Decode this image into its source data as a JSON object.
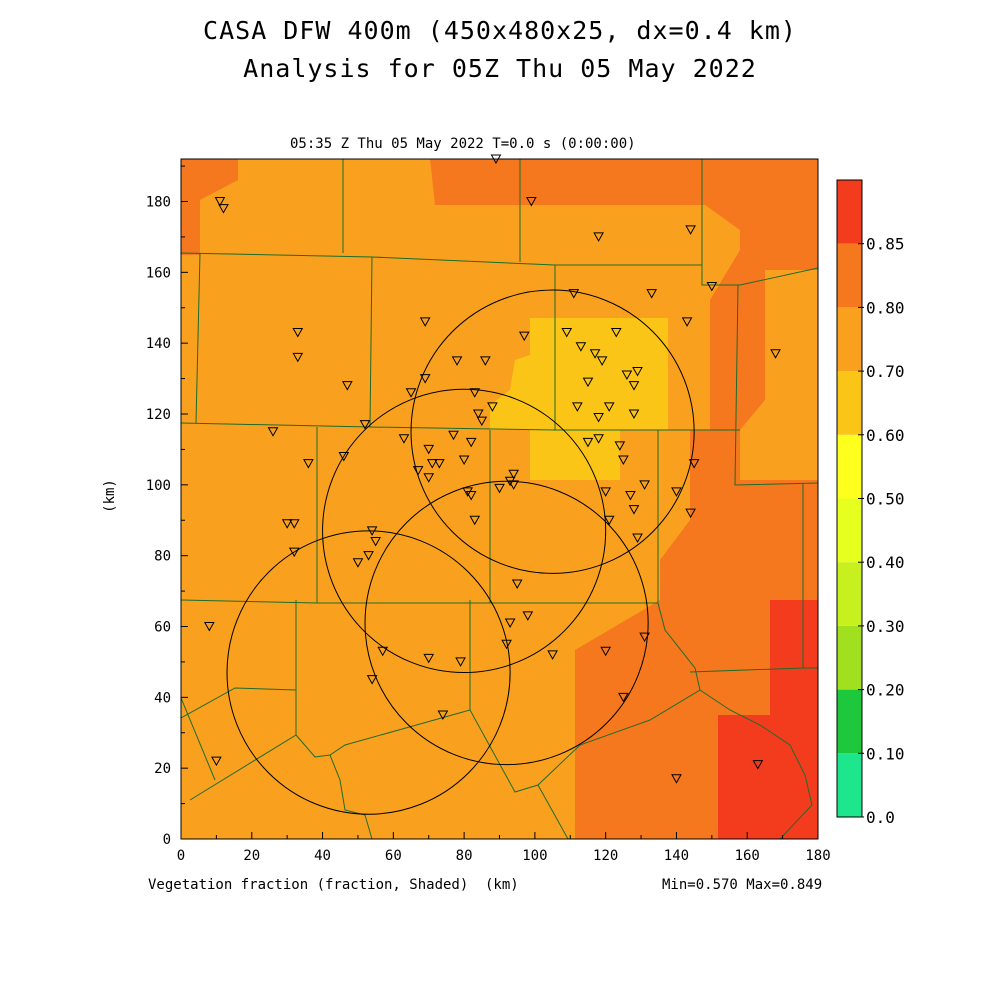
{
  "title_line1": "CASA DFW 400m (450x480x25, dx=0.4 km)",
  "title_line2": "Analysis for 05Z Thu 05 May 2022",
  "subtitle": "05:35 Z Thu 05 May 2022   T=0.0 s (0:00:00)",
  "x_axis": {
    "label": "(km)",
    "range": [
      0,
      180
    ],
    "ticks": [
      "0",
      "20",
      "40",
      "60",
      "80",
      "100",
      "120",
      "140",
      "160",
      "180"
    ]
  },
  "y_axis": {
    "label": "(km)",
    "range": [
      0,
      192
    ],
    "ticks": [
      "0",
      "20",
      "40",
      "60",
      "80",
      "100",
      "120",
      "140",
      "160",
      "180"
    ]
  },
  "field_label": "Vegetation fraction (fraction, Shaded)",
  "min_max": "Min=0.570 Max=0.849",
  "colorbar": {
    "labels": [
      "0.0",
      "0.10",
      "0.20",
      "0.30",
      "0.40",
      "0.50",
      "0.60",
      "0.70",
      "0.80",
      "0.85"
    ],
    "colors": [
      "#1ee68c",
      "#1ec83c",
      "#a0e01e",
      "#c8f01e",
      "#e6ff1e",
      "#ffff1e",
      "#fbc518",
      "#f9a11e",
      "#f5781e",
      "#f33c1e"
    ]
  },
  "radar_rings": [
    {
      "cx_km": 105,
      "cy_km": 115,
      "r_km": 40
    },
    {
      "cx_km": 80,
      "cy_km": 87,
      "r_km": 40
    },
    {
      "cx_km": 92,
      "cy_km": 61,
      "r_km": 40
    },
    {
      "cx_km": 53,
      "cy_km": 47,
      "r_km": 40
    }
  ],
  "stations_km": [
    [
      11,
      180
    ],
    [
      12,
      178
    ],
    [
      89,
      192
    ],
    [
      99,
      180
    ],
    [
      118,
      170
    ],
    [
      144,
      172
    ],
    [
      150,
      156
    ],
    [
      133,
      154
    ],
    [
      111,
      154
    ],
    [
      143,
      146
    ],
    [
      33,
      143
    ],
    [
      33,
      136
    ],
    [
      69,
      146
    ],
    [
      97,
      142
    ],
    [
      109,
      143
    ],
    [
      113,
      139
    ],
    [
      117,
      137
    ],
    [
      119,
      135
    ],
    [
      123,
      143
    ],
    [
      126,
      131
    ],
    [
      129,
      132
    ],
    [
      115,
      129
    ],
    [
      128,
      128
    ],
    [
      47,
      128
    ],
    [
      65,
      126
    ],
    [
      69,
      130
    ],
    [
      78,
      135
    ],
    [
      83,
      126
    ],
    [
      86,
      135
    ],
    [
      88,
      122
    ],
    [
      112,
      122
    ],
    [
      121,
      122
    ],
    [
      118,
      119
    ],
    [
      128,
      120
    ],
    [
      168,
      137
    ],
    [
      52,
      117
    ],
    [
      26,
      115
    ],
    [
      36,
      106
    ],
    [
      46,
      108
    ],
    [
      63,
      113
    ],
    [
      70,
      110
    ],
    [
      77,
      114
    ],
    [
      80,
      107
    ],
    [
      82,
      112
    ],
    [
      84,
      120
    ],
    [
      85,
      118
    ],
    [
      67,
      104
    ],
    [
      71,
      106
    ],
    [
      73,
      106
    ],
    [
      70,
      102
    ],
    [
      81,
      98
    ],
    [
      82,
      97
    ],
    [
      83,
      90
    ],
    [
      90,
      99
    ],
    [
      93,
      101
    ],
    [
      94,
      103
    ],
    [
      94,
      100
    ],
    [
      115,
      112
    ],
    [
      118,
      113
    ],
    [
      124,
      111
    ],
    [
      125,
      107
    ],
    [
      145,
      106
    ],
    [
      120,
      98
    ],
    [
      121,
      90
    ],
    [
      127,
      97
    ],
    [
      128,
      93
    ],
    [
      131,
      100
    ],
    [
      140,
      98
    ],
    [
      144,
      92
    ],
    [
      129,
      85
    ],
    [
      30,
      89
    ],
    [
      32,
      89
    ],
    [
      32,
      81
    ],
    [
      54,
      87
    ],
    [
      55,
      84
    ],
    [
      50,
      78
    ],
    [
      53,
      80
    ],
    [
      95,
      72
    ],
    [
      98,
      63
    ],
    [
      93,
      61
    ],
    [
      8,
      60
    ],
    [
      57,
      53
    ],
    [
      70,
      51
    ],
    [
      79,
      50
    ],
    [
      92,
      55
    ],
    [
      105,
      52
    ],
    [
      120,
      53
    ],
    [
      131,
      57
    ],
    [
      125,
      40
    ],
    [
      54,
      45
    ],
    [
      74,
      35
    ],
    [
      10,
      22
    ],
    [
      140,
      17
    ],
    [
      163,
      21
    ]
  ]
}
